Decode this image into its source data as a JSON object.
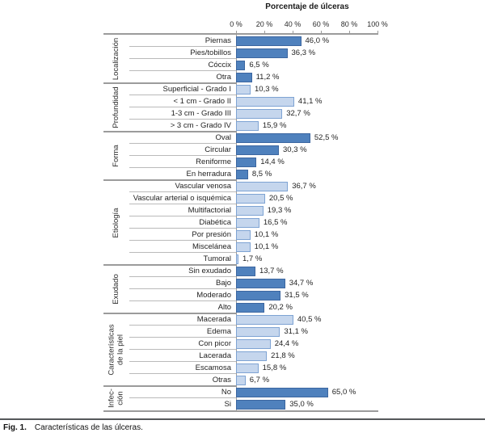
{
  "title": "Porcentaje de úlceras",
  "caption": {
    "fig": "Fig. 1.",
    "text": "Características de las úlceras."
  },
  "colors": {
    "dark_bar_fill": "#4f81bd",
    "dark_bar_border": "#3c66a0",
    "light_bar_fill": "#c5d6ed",
    "light_bar_border": "#7ea3d3",
    "group_line": "#9b9b9b",
    "row_line": "#bababa"
  },
  "chart_data": {
    "type": "bar",
    "orientation": "horizontal",
    "title": "Porcentaje de úlceras",
    "xlabel": "Porcentaje de úlceras",
    "xlim": [
      0,
      100
    ],
    "x_ticks": [
      0,
      20,
      40,
      60,
      80,
      100
    ],
    "x_tick_labels": [
      "0 %",
      "20 %",
      "40 %",
      "60 %",
      "80 %",
      "100 %"
    ],
    "grid": false,
    "legend": false,
    "groups": [
      {
        "name": "Localización",
        "shade": "dark",
        "items": [
          {
            "label": "Piernas",
            "value": 46.0,
            "display": "46,0 %"
          },
          {
            "label": "Pies/tobillos",
            "value": 36.3,
            "display": "36,3 %"
          },
          {
            "label": "Cóccix",
            "value": 6.5,
            "display": "6,5 %"
          },
          {
            "label": "Otra",
            "value": 11.2,
            "display": "11,2 %"
          }
        ]
      },
      {
        "name": "Profundidad",
        "shade": "light",
        "items": [
          {
            "label": "Superficial - Grado I",
            "value": 10.3,
            "display": "10,3 %"
          },
          {
            "label": "< 1 cm - Grado II",
            "value": 41.1,
            "display": "41,1 %"
          },
          {
            "label": "1-3 cm - Grado III",
            "value": 32.7,
            "display": "32,7 %"
          },
          {
            "label": "> 3 cm - Grado IV",
            "value": 15.9,
            "display": "15,9 %"
          }
        ]
      },
      {
        "name": "Forma",
        "shade": "dark",
        "items": [
          {
            "label": "Oval",
            "value": 52.5,
            "display": "52,5 %"
          },
          {
            "label": "Circular",
            "value": 30.3,
            "display": "30,3 %"
          },
          {
            "label": "Reniforme",
            "value": 14.4,
            "display": "14,4 %"
          },
          {
            "label": "En herradura",
            "value": 8.5,
            "display": "8,5 %"
          }
        ]
      },
      {
        "name": "Etiología",
        "shade": "light",
        "items": [
          {
            "label": "Vascular venosa",
            "value": 36.7,
            "display": "36,7 %"
          },
          {
            "label": "Vascular arterial o isquémica",
            "value": 20.5,
            "display": "20,5 %"
          },
          {
            "label": "Multifactorial",
            "value": 19.3,
            "display": "19,3 %"
          },
          {
            "label": "Diabética",
            "value": 16.5,
            "display": "16,5 %"
          },
          {
            "label": "Por presión",
            "value": 10.1,
            "display": "10,1 %"
          },
          {
            "label": "Miscelánea",
            "value": 10.1,
            "display": "10,1 %"
          },
          {
            "label": "Tumoral",
            "value": 1.7,
            "display": "1,7 %"
          }
        ]
      },
      {
        "name": "Exudado",
        "shade": "dark",
        "items": [
          {
            "label": "Sin exudado",
            "value": 13.7,
            "display": "13,7 %"
          },
          {
            "label": "Bajo",
            "value": 34.7,
            "display": "34,7 %"
          },
          {
            "label": "Moderado",
            "value": 31.5,
            "display": "31,5 %"
          },
          {
            "label": "Alto",
            "value": 20.2,
            "display": "20,2 %"
          }
        ]
      },
      {
        "name": "Características\nde la piel",
        "shade": "light",
        "items": [
          {
            "label": "Macerada",
            "value": 40.5,
            "display": "40,5 %"
          },
          {
            "label": "Edema",
            "value": 31.1,
            "display": "31,1 %"
          },
          {
            "label": "Con picor",
            "value": 24.4,
            "display": "24,4 %"
          },
          {
            "label": "Lacerada",
            "value": 21.8,
            "display": "21,8 %"
          },
          {
            "label": "Escamosa",
            "value": 15.8,
            "display": "15,8 %"
          },
          {
            "label": "Otras",
            "value": 6.7,
            "display": "6,7 %"
          }
        ]
      },
      {
        "name": "Infec-\nción",
        "shade": "dark",
        "items": [
          {
            "label": "No",
            "value": 65.0,
            "display": "65,0 %"
          },
          {
            "label": "Si",
            "value": 35.0,
            "display": "35,0 %"
          }
        ]
      }
    ]
  }
}
